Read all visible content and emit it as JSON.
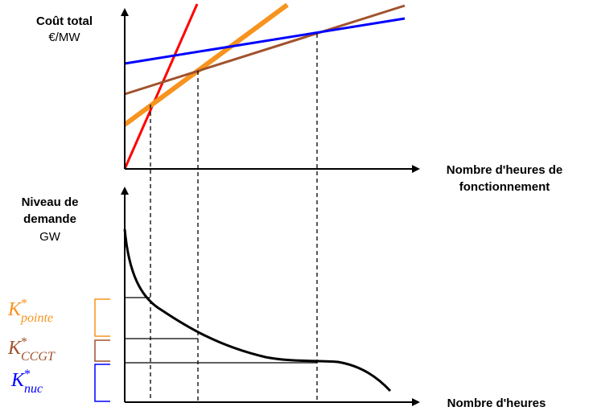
{
  "top_panel": {
    "y_title": "Coût total",
    "y_unit": "€/MW",
    "x_title_line1": "Nombre d'heures de",
    "x_title_line2": "fonctionnement"
  },
  "bottom_panel": {
    "y_title_line1": "Niveau de",
    "y_title_line2": "demande",
    "y_unit": "GW",
    "x_title": "Nombre d'heures"
  },
  "capacities": [
    {
      "symbol": "K",
      "sup": "*",
      "sub": "pointe",
      "color": "#f7931e"
    },
    {
      "symbol": "K",
      "sup": "*",
      "sub": "CCGT",
      "color": "#a0522d"
    },
    {
      "symbol": "K",
      "sup": "*",
      "sub": "nuc",
      "color": "#0000ff"
    }
  ],
  "colors": {
    "peak_line": "#ff0000",
    "orange_line": "#f7931e",
    "brown_line": "#a0522d",
    "blue_line": "#0000ff",
    "axis": "#000000"
  }
}
